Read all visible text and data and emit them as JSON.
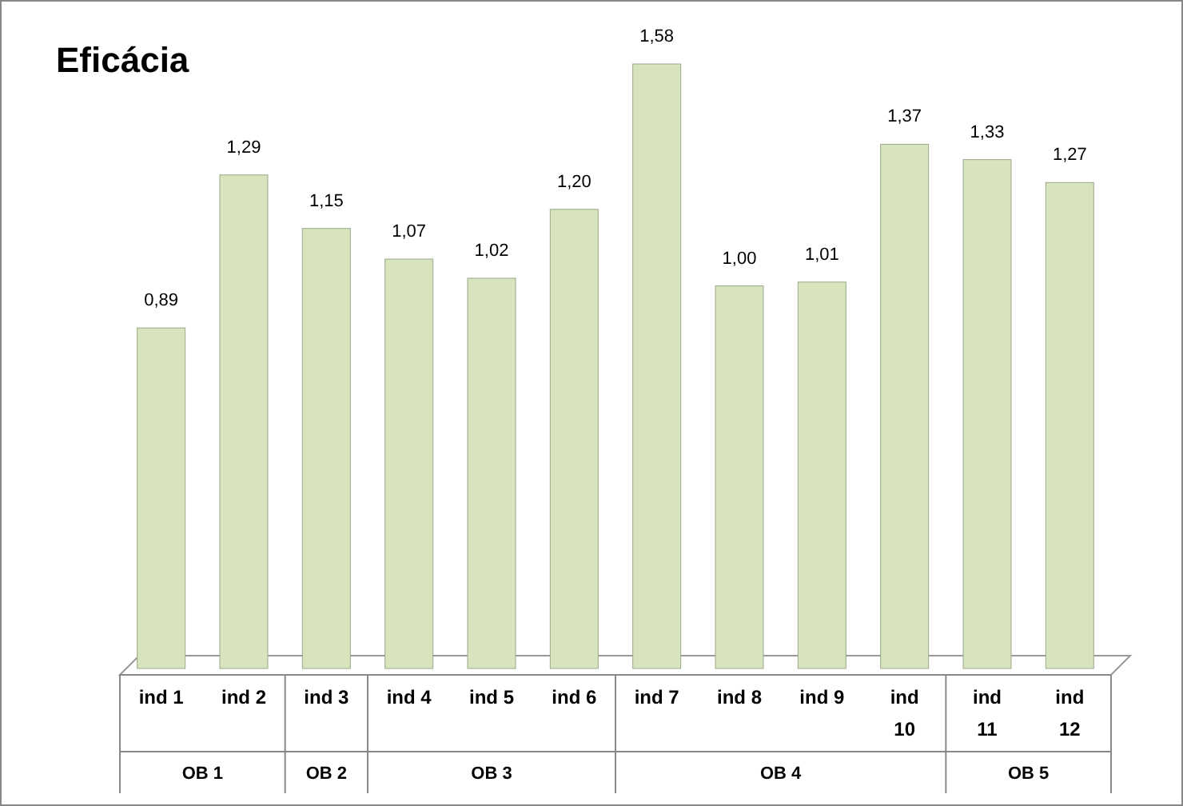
{
  "chart_data": {
    "type": "bar",
    "title": "Eficácia",
    "categories": [
      "ind 1",
      "ind 2",
      "ind 3",
      "ind 4",
      "ind 5",
      "ind 6",
      "ind 7",
      "ind 8",
      "ind 9",
      "ind 10",
      "ind 11",
      "ind 12"
    ],
    "values": [
      0.89,
      1.29,
      1.15,
      1.07,
      1.02,
      1.2,
      1.58,
      1.0,
      1.01,
      1.37,
      1.33,
      1.27
    ],
    "value_labels": [
      "0,89",
      "1,29",
      "1,15",
      "1,07",
      "1,02",
      "1,20",
      "1,58",
      "1,00",
      "1,01",
      "1,37",
      "1,33",
      "1,27"
    ],
    "color": "#d7e4bd",
    "annotations": [
      "OB 1",
      "OB 2",
      "OB 3",
      "OB 4",
      "OB 5"
    ]
  }
}
